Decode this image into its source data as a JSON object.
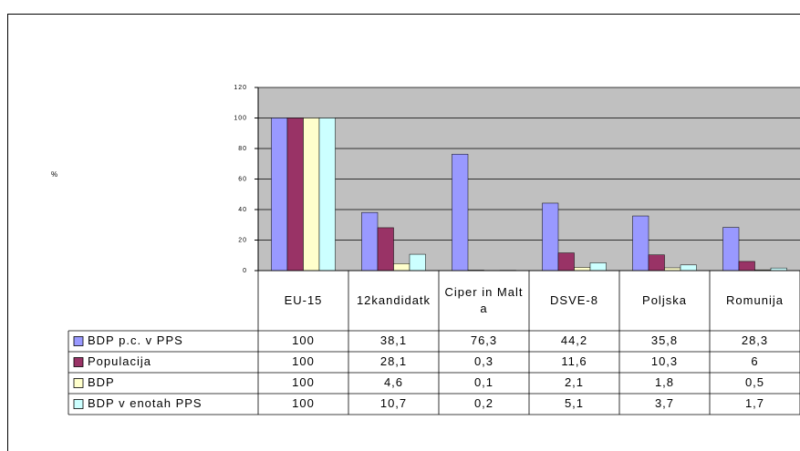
{
  "chart_data": {
    "type": "bar",
    "y_label": "%",
    "categories": [
      "EU-15",
      "12kandidatk",
      "Ciper in Malta",
      "DSVE-8",
      "Poljska",
      "Romunija"
    ],
    "series": [
      {
        "name": "BDP p.c. v PPS",
        "color": "#9999ff",
        "values": [
          100,
          38.1,
          76.3,
          44.2,
          35.8,
          28.3
        ],
        "value_labels": [
          "100",
          "38,1",
          "76,3",
          "44,2",
          "35,8",
          "28,3"
        ]
      },
      {
        "name": "Populacija",
        "color": "#993366",
        "values": [
          100,
          28.1,
          0.3,
          11.6,
          10.3,
          6
        ],
        "value_labels": [
          "100",
          "28,1",
          "0,3",
          "11,6",
          "10,3",
          "6"
        ]
      },
      {
        "name": "BDP",
        "color": "#ffffcc",
        "values": [
          100,
          4.6,
          0.1,
          2.1,
          1.8,
          0.5
        ],
        "value_labels": [
          "100",
          "4,6",
          "0,1",
          "2,1",
          "1,8",
          "0,5"
        ]
      },
      {
        "name": "BDP v enotah PPS",
        "color": "#ccffff",
        "values": [
          100,
          10.7,
          0.2,
          5.1,
          3.7,
          1.7
        ],
        "value_labels": [
          "100",
          "10,7",
          "0,2",
          "5,1",
          "3,7",
          "1,7"
        ]
      }
    ],
    "ylim": [
      0,
      120
    ],
    "yticks": [
      0,
      20,
      40,
      60,
      80,
      100,
      120
    ],
    "grid": true,
    "plot_background": "#c0c0c0",
    "data_table": true
  }
}
